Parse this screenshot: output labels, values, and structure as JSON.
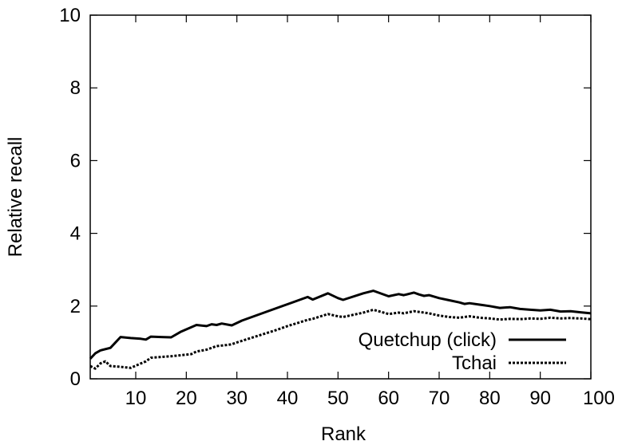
{
  "chart_data": {
    "type": "line",
    "xlabel": "Rank",
    "ylabel": "Relative recall",
    "xlim": [
      1,
      100
    ],
    "ylim": [
      0,
      10
    ],
    "xticks": [
      10,
      20,
      30,
      40,
      50,
      60,
      70,
      80,
      90,
      100
    ],
    "yticks": [
      0,
      2,
      4,
      6,
      8,
      10
    ],
    "legend_position": "bottom-right",
    "series": [
      {
        "name": "Quetchup (click)",
        "style": "solid",
        "color": "#000000",
        "x": [
          1,
          2,
          3,
          5,
          7,
          9,
          11,
          12,
          13,
          15,
          17,
          19,
          21,
          22,
          24,
          25,
          26,
          27,
          29,
          31,
          35,
          40,
          44,
          45,
          48,
          50,
          51,
          55,
          57,
          60,
          62,
          63,
          65,
          66,
          67,
          68,
          70,
          72,
          74,
          75,
          76,
          78,
          80,
          82,
          84,
          86,
          88,
          90,
          92,
          94,
          96,
          98,
          100
        ],
        "y": [
          0.55,
          0.7,
          0.78,
          0.85,
          1.15,
          1.12,
          1.1,
          1.08,
          1.16,
          1.15,
          1.14,
          1.3,
          1.42,
          1.48,
          1.45,
          1.5,
          1.48,
          1.52,
          1.47,
          1.6,
          1.8,
          2.05,
          2.25,
          2.18,
          2.35,
          2.22,
          2.17,
          2.35,
          2.42,
          2.27,
          2.33,
          2.3,
          2.37,
          2.32,
          2.28,
          2.3,
          2.22,
          2.16,
          2.1,
          2.06,
          2.08,
          2.04,
          2.0,
          1.95,
          1.97,
          1.92,
          1.9,
          1.88,
          1.9,
          1.85,
          1.86,
          1.83,
          1.8
        ]
      },
      {
        "name": "Tchai",
        "style": "dashed",
        "color": "#000000",
        "x": [
          1,
          2,
          3,
          4,
          5,
          7,
          9,
          11,
          12,
          13,
          15,
          17,
          19,
          21,
          22,
          24,
          25,
          26,
          28,
          29,
          30,
          35,
          38,
          40,
          44,
          45,
          48,
          50,
          51,
          55,
          57,
          60,
          62,
          63,
          65,
          66,
          68,
          70,
          72,
          74,
          75,
          76,
          78,
          80,
          82,
          84,
          86,
          88,
          90,
          92,
          94,
          96,
          98,
          100
        ],
        "y": [
          0.35,
          0.28,
          0.42,
          0.48,
          0.35,
          0.33,
          0.3,
          0.42,
          0.48,
          0.58,
          0.6,
          0.62,
          0.65,
          0.68,
          0.75,
          0.8,
          0.85,
          0.9,
          0.93,
          0.95,
          1.0,
          1.22,
          1.35,
          1.45,
          1.62,
          1.65,
          1.78,
          1.72,
          1.7,
          1.82,
          1.9,
          1.78,
          1.82,
          1.8,
          1.86,
          1.84,
          1.8,
          1.74,
          1.7,
          1.68,
          1.7,
          1.72,
          1.68,
          1.66,
          1.63,
          1.65,
          1.64,
          1.66,
          1.65,
          1.68,
          1.66,
          1.67,
          1.66,
          1.64
        ]
      }
    ]
  }
}
